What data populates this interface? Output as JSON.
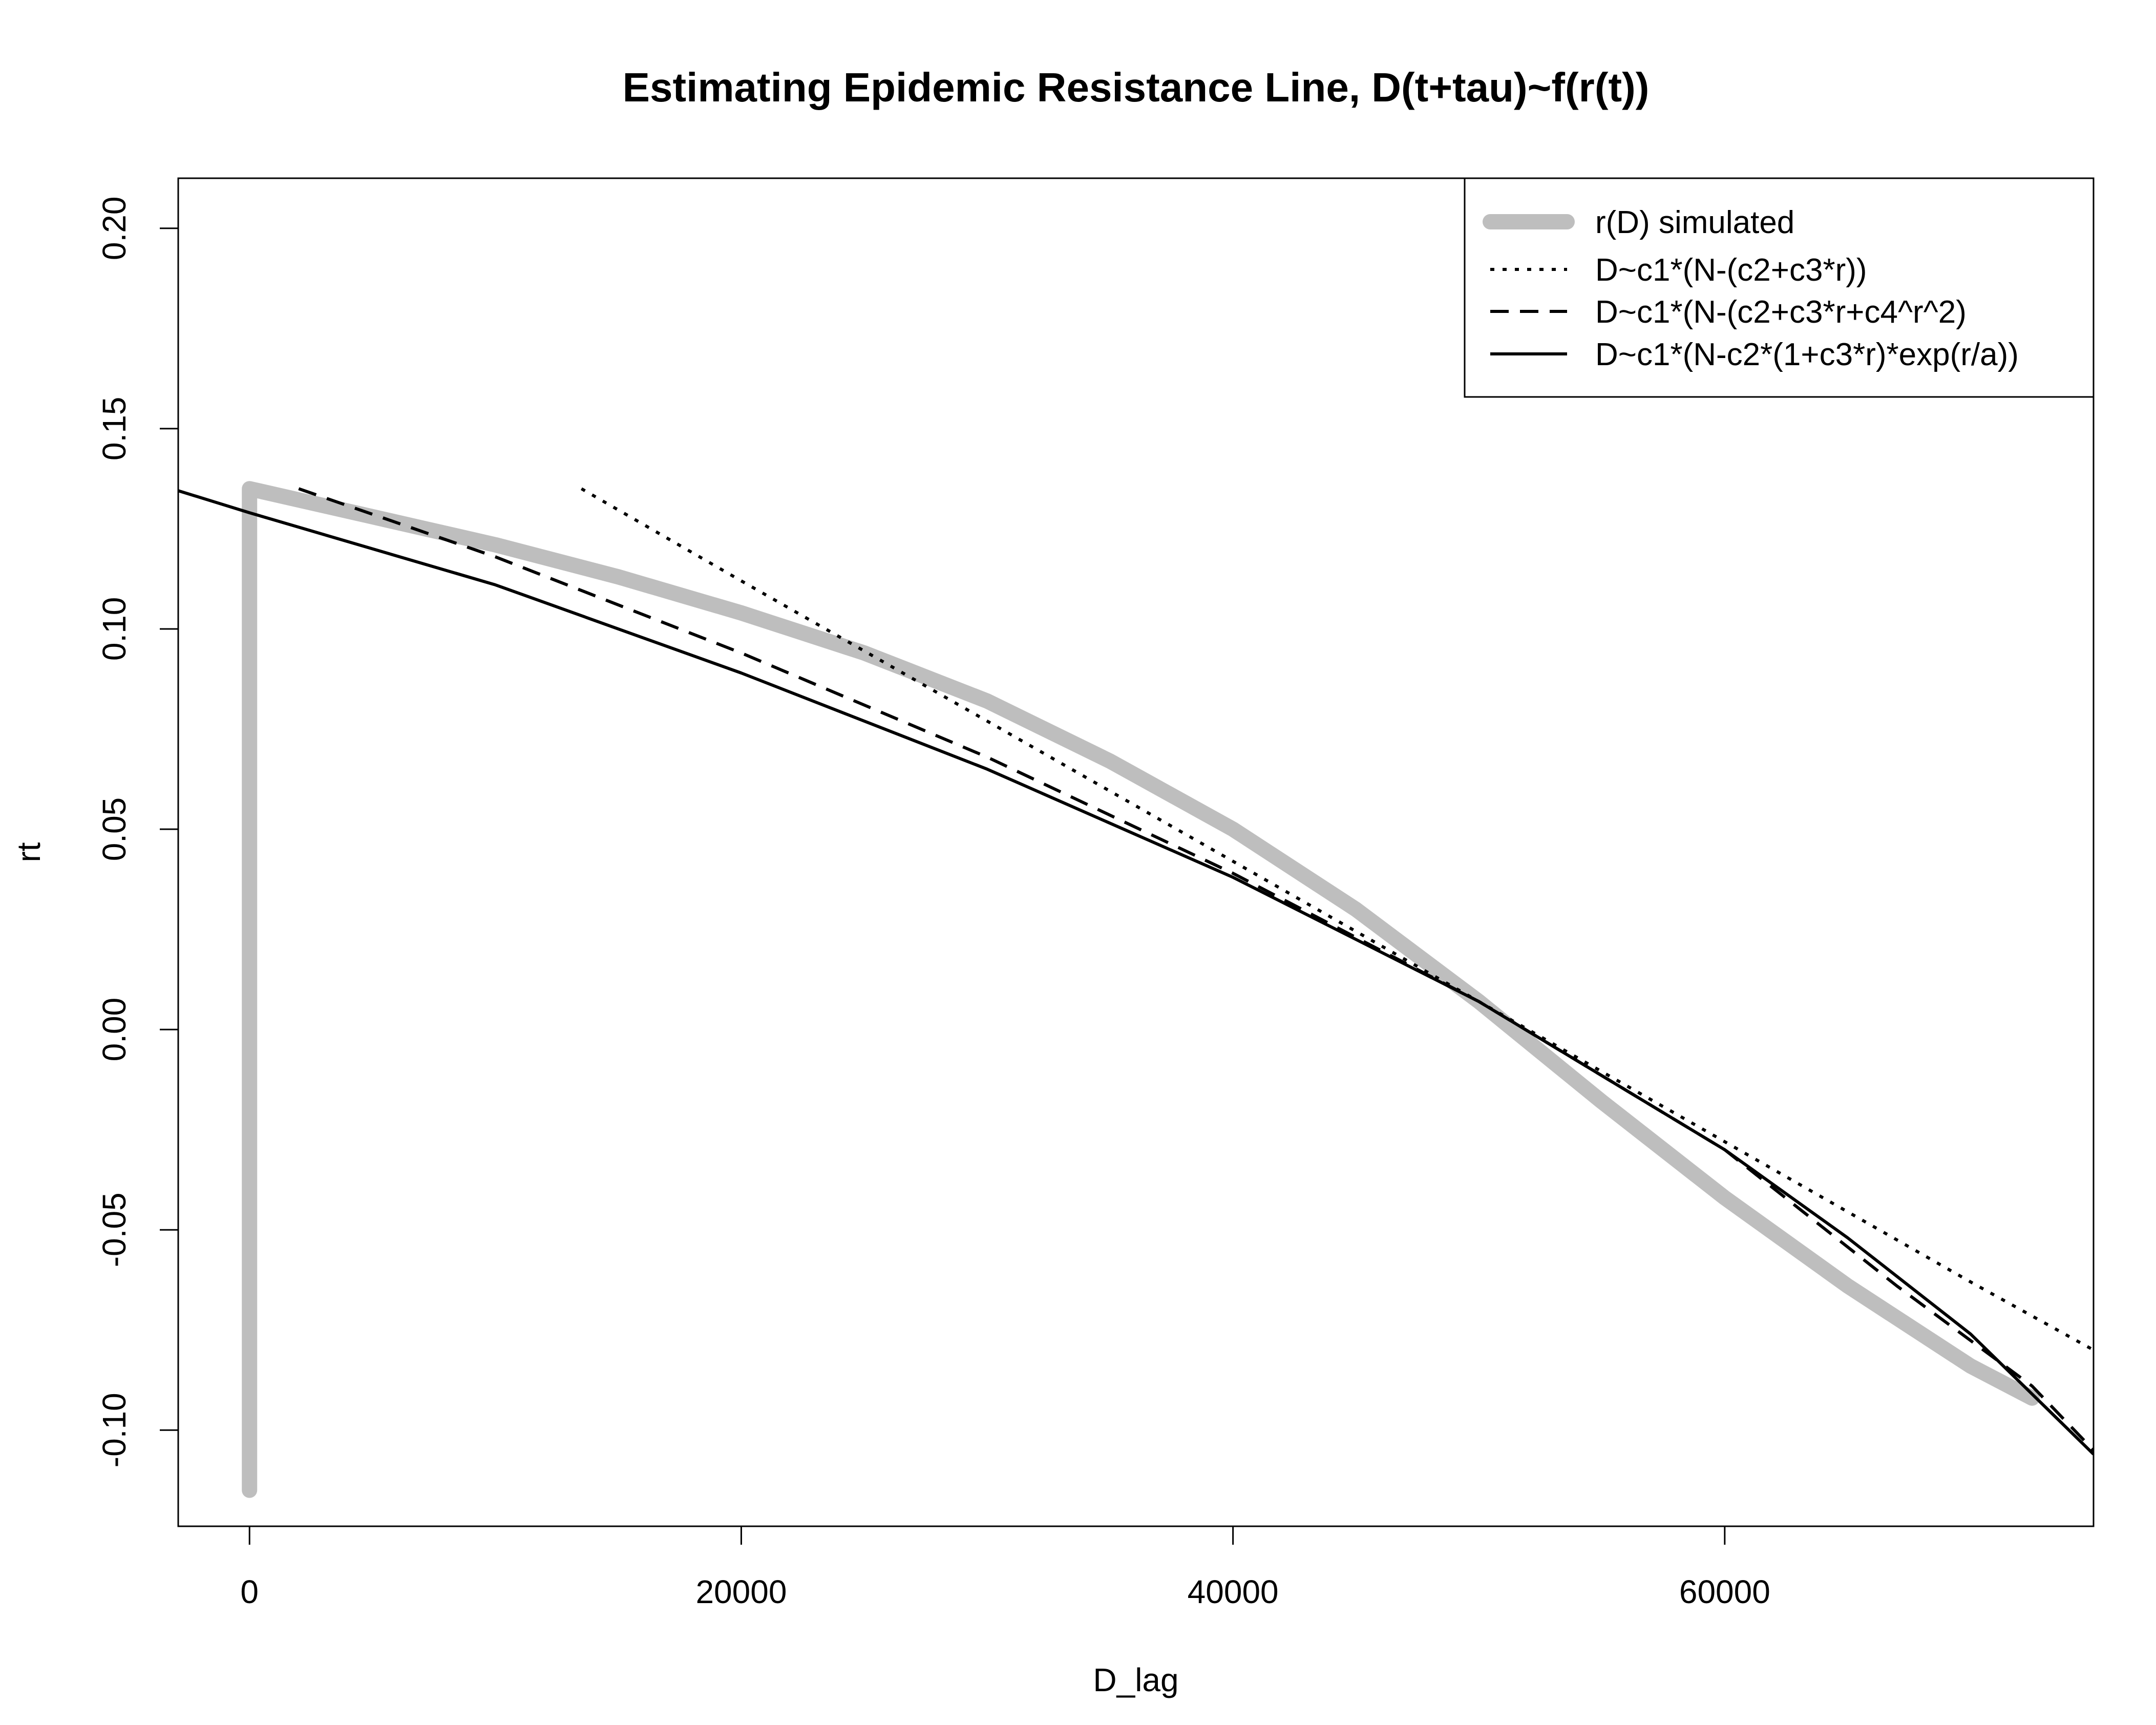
{
  "chart_data": {
    "type": "line",
    "title": "Estimating Epidemic Resistance Line, D(t+tau)~f(r(t))",
    "xlabel": "D_lag",
    "ylabel": "rt",
    "xlim": [
      -2900,
      75000
    ],
    "ylim": [
      -0.124,
      0.2125
    ],
    "x_ticks": [
      0,
      20000,
      40000,
      60000
    ],
    "x_tick_labels": [
      "0",
      "20000",
      "40000",
      "60000"
    ],
    "y_ticks": [
      -0.1,
      -0.05,
      0.0,
      0.05,
      0.1,
      0.15,
      0.2
    ],
    "y_tick_labels": [
      "-0.10",
      "-0.05",
      "0.00",
      "0.05",
      "0.10",
      "0.15",
      "0.20"
    ],
    "grid": false,
    "legend_position": "top-right",
    "series": [
      {
        "name": "r(D) simulated",
        "color": "#bebebe",
        "style": "thick",
        "x": [
          0,
          0,
          5000,
          10000,
          15000,
          20000,
          25000,
          30000,
          35000,
          40000,
          45000,
          50000,
          55000,
          60000,
          65000,
          70000,
          72500
        ],
        "y": [
          -0.115,
          0.135,
          0.128,
          0.121,
          0.113,
          0.104,
          0.094,
          0.082,
          0.067,
          0.05,
          0.03,
          0.007,
          -0.018,
          -0.042,
          -0.064,
          -0.084,
          -0.092
        ]
      },
      {
        "name": "D~c1*(N-(c2+c3*r))",
        "color": "#000000",
        "style": "dotted",
        "x": [
          13500,
          20000,
          30000,
          40000,
          50000,
          60000,
          70000,
          75000
        ],
        "y": [
          0.135,
          0.112,
          0.077,
          0.042,
          0.007,
          -0.028,
          -0.063,
          -0.08
        ]
      },
      {
        "name": "D~c1*(N-(c2+c3*r+c4^r^2)",
        "color": "#000000",
        "style": "dashed",
        "x": [
          2000,
          10000,
          20000,
          30000,
          40000,
          50000,
          60000,
          67000,
          72500,
          75000
        ],
        "y": [
          0.135,
          0.118,
          0.094,
          0.068,
          0.039,
          0.007,
          -0.03,
          -0.064,
          -0.089,
          -0.105
        ]
      },
      {
        "name": "D~c1*(N-c2*(1+c3*r)*exp(r/a))",
        "color": "#000000",
        "style": "solid",
        "x": [
          -2900,
          0,
          10000,
          20000,
          30000,
          40000,
          50000,
          60000,
          65000,
          70000,
          73000,
          75000
        ],
        "y": [
          0.1345,
          0.129,
          0.111,
          0.089,
          0.065,
          0.038,
          0.007,
          -0.03,
          -0.052,
          -0.076,
          -0.094,
          -0.106
        ]
      }
    ]
  }
}
